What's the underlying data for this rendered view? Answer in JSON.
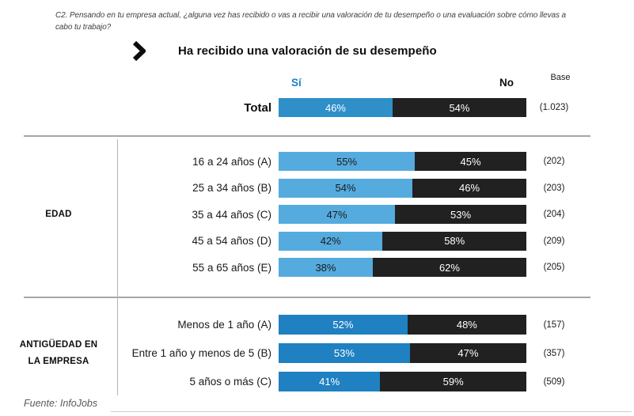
{
  "question": "C2. Pensando en tu empresa actual, ¿alguna vez has recibido o vas a recibir una valoración de tu desempeño o una evaluación sobre cómo llevas a cabo tu trabajo?",
  "title": "Ha recibido una valoración de su desempeño",
  "icons": {
    "title_arrow": "chevron-right-icon"
  },
  "headers": {
    "yes": "Sí",
    "no": "No",
    "base": "Base"
  },
  "source": "Fuente: InfoJobs",
  "colors": {
    "yes_total": "#2e8fc9",
    "yes_edad": "#55abde",
    "yes_antiguedad": "#1f80c2",
    "no_segment": "#212121",
    "yes_header_blue": "#1b7fc4",
    "grid_line": "#a6a6a6"
  },
  "chart_data": {
    "type": "bar",
    "subtype": "horizontal-stacked-100pct",
    "series_labels": [
      "Sí",
      "No"
    ],
    "unit": "%",
    "xlim": [
      0,
      100
    ],
    "total": {
      "label": "Total",
      "yes": 46,
      "no": 54,
      "base": "(1.023)"
    },
    "groups": [
      {
        "name": "EDAD",
        "name_lines": [
          "EDAD"
        ],
        "rows": [
          {
            "label": "16 a 24 años (A)",
            "yes": 55,
            "no": 45,
            "base": "(202)"
          },
          {
            "label": "25 a 34 años (B)",
            "yes": 54,
            "no": 46,
            "base": "(203)"
          },
          {
            "label": "35 a 44 años (C)",
            "yes": 47,
            "no": 53,
            "base": "(204)"
          },
          {
            "label": "45 a 54 años (D)",
            "yes": 42,
            "no": 58,
            "base": "(209)"
          },
          {
            "label": "55 a 65 años (E)",
            "yes": 38,
            "no": 62,
            "base": "(205)"
          }
        ]
      },
      {
        "name": "ANTIGÜEDAD EN LA EMPRESA",
        "name_lines": [
          "ANTIGÜEDAD EN",
          "LA EMPRESA"
        ],
        "rows": [
          {
            "label": "Menos de 1 año (A)",
            "yes": 52,
            "no": 48,
            "base": "(157)"
          },
          {
            "label": "Entre 1 año y menos de 5 (B)",
            "yes": 53,
            "no": 47,
            "base": "(357)"
          },
          {
            "label": "5 años o más (C)",
            "yes": 41,
            "no": 59,
            "base": "(509)"
          }
        ]
      }
    ]
  }
}
